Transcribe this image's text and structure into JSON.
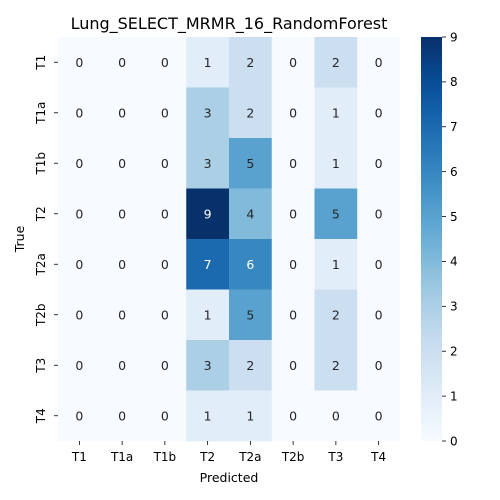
{
  "chart_data": {
    "type": "heatmap",
    "title": "Lung_SELECT_MRMR_16_RandomForest",
    "xlabel": "Predicted",
    "ylabel": "True",
    "x_categories": [
      "T1",
      "T1a",
      "T1b",
      "T2",
      "T2a",
      "T2b",
      "T3",
      "T4"
    ],
    "y_categories": [
      "T1",
      "T1a",
      "T1b",
      "T2",
      "T2a",
      "T2b",
      "T3",
      "T4"
    ],
    "values": [
      [
        0,
        0,
        0,
        1,
        2,
        0,
        2,
        0
      ],
      [
        0,
        0,
        0,
        3,
        2,
        0,
        1,
        0
      ],
      [
        0,
        0,
        0,
        3,
        5,
        0,
        1,
        0
      ],
      [
        0,
        0,
        0,
        9,
        4,
        0,
        5,
        0
      ],
      [
        0,
        0,
        0,
        7,
        6,
        0,
        1,
        0
      ],
      [
        0,
        0,
        0,
        1,
        5,
        0,
        2,
        0
      ],
      [
        0,
        0,
        0,
        3,
        2,
        0,
        2,
        0
      ],
      [
        0,
        0,
        0,
        1,
        1,
        0,
        0,
        0
      ]
    ],
    "colorbar": {
      "min": 0,
      "max": 9,
      "ticks": [
        0,
        1,
        2,
        3,
        4,
        5,
        6,
        7,
        8,
        9
      ],
      "colormap": "Blues",
      "low_color": "#f7fbff",
      "high_color": "#08306b"
    },
    "legend": "none",
    "grid": false
  }
}
